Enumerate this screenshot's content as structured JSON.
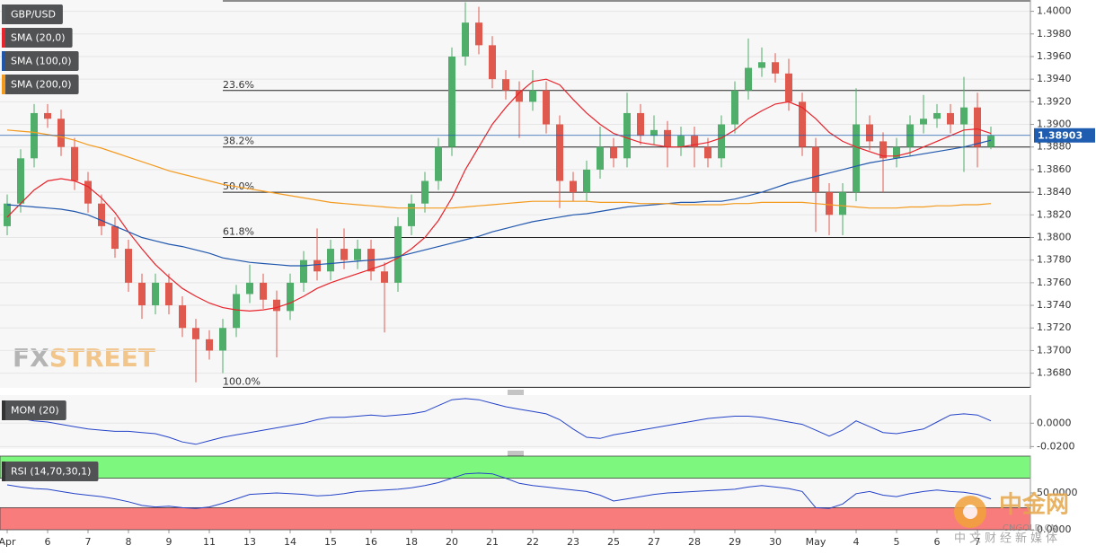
{
  "chart_data": [
    {
      "type": "candlestick",
      "categories": [
        "Apr",
        null,
        null,
        "6",
        null,
        null,
        "7",
        null,
        null,
        "8",
        null,
        null,
        "9",
        null,
        null,
        "11",
        null,
        null,
        "13",
        null,
        null,
        "14",
        null,
        null,
        "15",
        null,
        null,
        "16",
        null,
        null,
        "18",
        null,
        null,
        "20",
        null,
        null,
        "21",
        null,
        null,
        "22",
        null,
        null,
        "23",
        null,
        null,
        "25",
        null,
        null,
        "27",
        null,
        null,
        "28",
        null,
        null,
        "29",
        null,
        null,
        "30",
        null,
        null,
        "May",
        null,
        null,
        "4",
        null,
        null,
        "5",
        null,
        null,
        "6",
        null,
        null,
        "7",
        null
      ],
      "series": [
        {
          "name": "GBP/USD",
          "type": "candlestick",
          "color": "#55585a",
          "up_color": "#4fae6a",
          "down_color": "#e0594f",
          "open": [
            1.381,
            1.383,
            1.387,
            1.391,
            1.3905,
            1.388,
            1.385,
            1.383,
            1.381,
            1.379,
            1.376,
            1.374,
            1.376,
            1.374,
            1.372,
            1.371,
            1.37,
            1.372,
            1.375,
            1.376,
            1.3745,
            1.3735,
            1.376,
            1.378,
            1.377,
            1.379,
            1.378,
            1.379,
            1.377,
            1.376,
            1.381,
            1.383,
            1.385,
            1.388,
            1.396,
            1.399,
            1.397,
            1.394,
            1.393,
            1.392,
            1.393,
            1.39,
            1.385,
            1.384,
            1.386,
            1.388,
            1.387,
            1.391,
            1.389,
            1.3895,
            1.388,
            1.389,
            1.388,
            1.387,
            1.39,
            1.393,
            1.395,
            1.3955,
            1.3945,
            1.392,
            1.388,
            1.384,
            1.382,
            1.384,
            1.39,
            1.3885,
            1.387,
            1.388,
            1.39,
            1.3905,
            1.391,
            1.39,
            1.3915,
            1.388
          ],
          "high": [
            1.3838,
            1.3878,
            1.3918,
            1.3918,
            1.3913,
            1.3888,
            1.3858,
            1.3838,
            1.3818,
            1.3798,
            1.3768,
            1.3768,
            1.3768,
            1.3748,
            1.3728,
            1.3718,
            1.3728,
            1.3758,
            1.3776,
            1.3768,
            1.3753,
            1.3768,
            1.3788,
            1.3808,
            1.3798,
            1.3808,
            1.3798,
            1.3798,
            1.3778,
            1.3818,
            1.3838,
            1.3858,
            1.3888,
            1.3968,
            1.4008,
            1.4004,
            1.3978,
            1.3948,
            1.3938,
            1.3948,
            1.3938,
            1.3908,
            1.3858,
            1.3868,
            1.3898,
            1.3888,
            1.3928,
            1.3918,
            1.3908,
            1.3903,
            1.3898,
            1.3898,
            1.3888,
            1.3908,
            1.3938,
            1.3976,
            1.3968,
            1.3963,
            1.3958,
            1.3928,
            1.3888,
            1.3848,
            1.3848,
            1.3932,
            1.3908,
            1.3893,
            1.3888,
            1.3908,
            1.3926,
            1.3918,
            1.3918,
            1.3942,
            1.3928,
            1.3898
          ],
          "low": [
            1.3802,
            1.3822,
            1.3862,
            1.3897,
            1.3872,
            1.3842,
            1.3822,
            1.3802,
            1.3782,
            1.3752,
            1.3728,
            1.3732,
            1.3732,
            1.3712,
            1.3672,
            1.3692,
            1.368,
            1.3712,
            1.3742,
            1.3737,
            1.3694,
            1.3727,
            1.3752,
            1.3762,
            1.3762,
            1.3772,
            1.3772,
            1.3762,
            1.3716,
            1.3752,
            1.3802,
            1.3822,
            1.3842,
            1.3872,
            1.3952,
            1.3962,
            1.3932,
            1.3922,
            1.3888,
            1.3912,
            1.3892,
            1.3826,
            1.3832,
            1.3832,
            1.3852,
            1.3862,
            1.3862,
            1.3882,
            1.3882,
            1.3862,
            1.3872,
            1.3862,
            1.3862,
            1.3862,
            1.3892,
            1.3922,
            1.3942,
            1.3937,
            1.3912,
            1.3872,
            1.3805,
            1.3802,
            1.3802,
            1.3832,
            1.3877,
            1.384,
            1.3862,
            1.3872,
            1.3892,
            1.3897,
            1.3892,
            1.3858,
            1.3862,
            1.3878
          ],
          "close": [
            1.383,
            1.387,
            1.391,
            1.3905,
            1.388,
            1.385,
            1.383,
            1.381,
            1.379,
            1.376,
            1.374,
            1.376,
            1.374,
            1.372,
            1.371,
            1.37,
            1.372,
            1.375,
            1.376,
            1.3745,
            1.3735,
            1.376,
            1.378,
            1.377,
            1.379,
            1.378,
            1.379,
            1.377,
            1.376,
            1.381,
            1.383,
            1.385,
            1.388,
            1.396,
            1.399,
            1.397,
            1.394,
            1.393,
            1.392,
            1.393,
            1.39,
            1.385,
            1.384,
            1.386,
            1.388,
            1.387,
            1.391,
            1.389,
            1.3895,
            1.388,
            1.389,
            1.388,
            1.387,
            1.39,
            1.393,
            1.395,
            1.3955,
            1.3945,
            1.392,
            1.388,
            1.384,
            1.382,
            1.384,
            1.39,
            1.3885,
            1.387,
            1.388,
            1.39,
            1.3905,
            1.391,
            1.39,
            1.3915,
            1.388,
            1.389
          ]
        },
        {
          "name": "SMA (20,0)",
          "type": "line",
          "color": "#e8232b",
          "values": [
            1.3818,
            1.383,
            1.3842,
            1.385,
            1.3852,
            1.385,
            1.3845,
            1.3835,
            1.3822,
            1.3805,
            1.379,
            1.3776,
            1.3765,
            1.3755,
            1.3748,
            1.3742,
            1.3738,
            1.3736,
            1.3735,
            1.3736,
            1.3738,
            1.3742,
            1.3748,
            1.3755,
            1.376,
            1.3764,
            1.3768,
            1.3772,
            1.3776,
            1.3782,
            1.379,
            1.38,
            1.3815,
            1.3835,
            1.386,
            1.388,
            1.39,
            1.3915,
            1.3928,
            1.3938,
            1.394,
            1.3935,
            1.3922,
            1.391,
            1.39,
            1.3892,
            1.3888,
            1.3884,
            1.3882,
            1.388,
            1.388,
            1.3882,
            1.3884,
            1.3888,
            1.3895,
            1.3905,
            1.3912,
            1.3918,
            1.392,
            1.3915,
            1.3905,
            1.3893,
            1.3885,
            1.388,
            1.3876,
            1.3872,
            1.3872,
            1.3875,
            1.388,
            1.3885,
            1.389,
            1.3895,
            1.3896,
            1.3892
          ]
        },
        {
          "name": "SMA (100,0)",
          "type": "line",
          "color": "#2057ad",
          "values": [
            1.3829,
            1.3828,
            1.3827,
            1.3826,
            1.3825,
            1.3823,
            1.382,
            1.3815,
            1.381,
            1.3805,
            1.38,
            1.3797,
            1.3794,
            1.3792,
            1.3789,
            1.3786,
            1.3782,
            1.378,
            1.3778,
            1.3777,
            1.3776,
            1.3775,
            1.3775,
            1.3776,
            1.3777,
            1.3778,
            1.3779,
            1.378,
            1.3781,
            1.3783,
            1.3786,
            1.3789,
            1.3792,
            1.3795,
            1.3798,
            1.3801,
            1.3805,
            1.3808,
            1.3811,
            1.3814,
            1.3816,
            1.3818,
            1.382,
            1.3821,
            1.3823,
            1.3825,
            1.3827,
            1.3828,
            1.3829,
            1.383,
            1.3831,
            1.3831,
            1.3832,
            1.3832,
            1.3834,
            1.3837,
            1.384,
            1.3844,
            1.3848,
            1.3851,
            1.3854,
            1.3857,
            1.386,
            1.3863,
            1.3866,
            1.3868,
            1.387,
            1.3872,
            1.3874,
            1.3876,
            1.3878,
            1.388,
            1.3883,
            1.3886
          ]
        },
        {
          "name": "SMA (200,0)",
          "type": "line",
          "color": "#f39a1e",
          "values": [
            1.3895,
            1.3894,
            1.3893,
            1.3891,
            1.3889,
            1.3886,
            1.3882,
            1.3879,
            1.3875,
            1.3871,
            1.3867,
            1.3863,
            1.3859,
            1.3856,
            1.3853,
            1.385,
            1.3847,
            1.3845,
            1.3843,
            1.3841,
            1.3839,
            1.3837,
            1.3835,
            1.3833,
            1.3831,
            1.383,
            1.3829,
            1.3828,
            1.3827,
            1.3826,
            1.3826,
            1.3826,
            1.3826,
            1.3826,
            1.3827,
            1.3828,
            1.3829,
            1.383,
            1.3831,
            1.3832,
            1.3832,
            1.3832,
            1.3832,
            1.3832,
            1.3831,
            1.3831,
            1.3831,
            1.383,
            1.383,
            1.383,
            1.3829,
            1.3829,
            1.3829,
            1.3829,
            1.383,
            1.383,
            1.3831,
            1.3831,
            1.3831,
            1.3831,
            1.383,
            1.3829,
            1.3828,
            1.3827,
            1.3826,
            1.3826,
            1.3826,
            1.3827,
            1.3827,
            1.3828,
            1.3828,
            1.3829,
            1.3829,
            1.383
          ]
        }
      ],
      "fibonacci": [
        {
          "label": "23.6%",
          "value": 1.393
        },
        {
          "label": "38.2%",
          "value": 1.388
        },
        {
          "label": "50.0%",
          "value": 1.384
        },
        {
          "label": "61.8%",
          "value": 1.38
        },
        {
          "label": "100.0%",
          "value": 1.36675
        }
      ],
      "current_price": {
        "value": 1.38903,
        "color": "#1f5db0"
      },
      "ylim": [
        1.3667,
        1.401
      ],
      "yticks": [
        {
          "value": 1.368,
          "label": "1.3680"
        },
        {
          "value": 1.37,
          "label": "1.3700"
        },
        {
          "value": 1.372,
          "label": "1.3720"
        },
        {
          "value": 1.374,
          "label": "1.3740"
        },
        {
          "value": 1.376,
          "label": "1.3760"
        },
        {
          "value": 1.378,
          "label": "1.3780"
        },
        {
          "value": 1.38,
          "label": "1.3800"
        },
        {
          "value": 1.382,
          "label": "1.3820"
        },
        {
          "value": 1.384,
          "label": "1.3840"
        },
        {
          "value": 1.386,
          "label": "1.3860"
        },
        {
          "value": 1.388,
          "label": "1.3880"
        },
        {
          "value": 1.39,
          "label": "1.3900"
        },
        {
          "value": 1.392,
          "label": "1.3920"
        },
        {
          "value": 1.394,
          "label": "1.3940"
        },
        {
          "value": 1.396,
          "label": "1.3960"
        },
        {
          "value": 1.398,
          "label": "1.3980"
        },
        {
          "value": 1.4,
          "label": "1.4000"
        }
      ],
      "grid": true
    },
    {
      "type": "line",
      "series": [
        {
          "name": "MOM (20)",
          "color": "#2443c8",
          "values": [
            0.007,
            0.004,
            0.002,
            0.001,
            -0.001,
            -0.003,
            -0.005,
            -0.006,
            -0.007,
            -0.007,
            -0.008,
            -0.009,
            -0.012,
            -0.016,
            -0.018,
            -0.015,
            -0.012,
            -0.01,
            -0.008,
            -0.006,
            -0.004,
            -0.002,
            0.0,
            0.003,
            0.005,
            0.005,
            0.006,
            0.007,
            0.006,
            0.007,
            0.008,
            0.01,
            0.015,
            0.02,
            0.021,
            0.02,
            0.017,
            0.014,
            0.012,
            0.01,
            0.008,
            0.003,
            -0.005,
            -0.012,
            -0.013,
            -0.01,
            -0.008,
            -0.006,
            -0.004,
            -0.002,
            0.0,
            0.002,
            0.004,
            0.005,
            0.006,
            0.006,
            0.005,
            0.003,
            0.001,
            -0.001,
            -0.006,
            -0.011,
            -0.006,
            0.002,
            -0.003,
            -0.008,
            -0.009,
            -0.007,
            -0.005,
            0.001,
            0.007,
            0.008,
            0.007,
            0.002
          ]
        }
      ],
      "ylim": [
        -0.022,
        0.024
      ],
      "yticks": [
        {
          "value": 0,
          "label": "0.0000"
        },
        {
          "value": -0.02,
          "label": "-0.0200"
        }
      ],
      "grid": true
    },
    {
      "type": "line",
      "series": [
        {
          "name": "RSI (14,70,30,1)",
          "color": "#2443c8",
          "values": [
            61,
            58,
            56,
            55,
            52,
            49,
            47,
            45,
            42,
            38,
            33,
            31,
            32,
            30,
            29,
            31,
            36,
            42,
            48,
            49,
            50,
            49,
            48,
            46,
            47,
            49,
            52,
            53,
            54,
            55,
            57,
            60,
            64,
            70,
            76,
            77,
            76,
            70,
            63,
            60,
            58,
            56,
            54,
            52,
            47,
            39,
            42,
            45,
            48,
            50,
            51,
            52,
            53,
            54,
            55,
            58,
            60,
            58,
            56,
            52,
            30,
            29,
            35,
            49,
            52,
            47,
            45,
            49,
            52,
            54,
            52,
            51,
            48,
            42
          ]
        }
      ],
      "zones": [
        {
          "from": 70,
          "to": 100,
          "color": "#7ef77e"
        },
        {
          "from": 0,
          "to": 30,
          "color": "#f87c7c"
        }
      ],
      "ylim": [
        0,
        100
      ],
      "yticks": [
        {
          "value": 50,
          "label": "50.0000"
        },
        {
          "value": 0,
          "label": "0.0000"
        }
      ],
      "grid": false
    }
  ],
  "watermarks": {
    "logo_left": "FX",
    "logo_right": "STREET",
    "site_name": "中金网",
    "site_domain": "CNGOLD.CN",
    "site_slogan": "中文财经新媒体"
  }
}
